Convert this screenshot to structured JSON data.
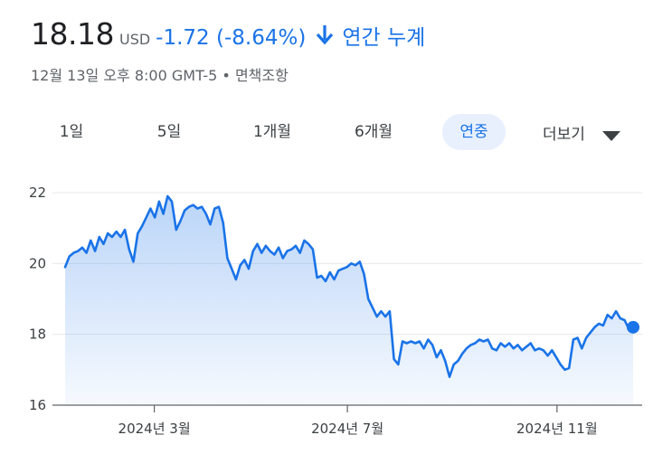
{
  "header": {
    "price": "18.18",
    "currency": "USD",
    "change": "-1.72 (-8.64%)",
    "period_label": "연간 누계",
    "meta": "12월 13일 오후 8:00 GMT-5 • 면책조항",
    "accent_color": "#1a73e8"
  },
  "tabs": [
    {
      "label": "1일",
      "active": false
    },
    {
      "label": "5일",
      "active": false
    },
    {
      "label": "1개월",
      "active": false
    },
    {
      "label": "6개월",
      "active": false
    },
    {
      "label": "연중",
      "active": true
    }
  ],
  "more": {
    "label": "더보기",
    "icon": "caret-down-icon"
  },
  "chart_data": {
    "type": "area",
    "title": "",
    "xlabel": "",
    "ylabel": "",
    "ylim": [
      16,
      22
    ],
    "y_ticks": [
      "22",
      "20",
      "18",
      "16"
    ],
    "x_ticks": [
      "2024년 3월",
      "2024년 7월",
      "2024년 11월"
    ],
    "grid": true,
    "line_color": "#1a73e8",
    "series": [
      {
        "values": [
          19.9,
          20.2,
          20.3,
          20.35,
          20.45,
          20.3,
          20.65,
          20.35,
          20.75,
          20.55,
          20.85,
          20.75,
          20.9,
          20.75,
          20.95,
          20.4,
          20.05,
          20.85,
          21.05,
          21.3,
          21.55,
          21.3,
          21.75,
          21.4,
          21.9,
          21.75,
          20.95,
          21.2,
          21.5,
          21.6,
          21.65,
          21.55,
          21.6,
          21.4,
          21.1,
          21.55,
          21.6,
          21.15,
          20.15,
          19.85,
          19.55,
          19.95,
          20.1,
          19.85,
          20.35,
          20.55,
          20.3,
          20.5,
          20.35,
          20.25,
          20.45,
          20.15,
          20.35,
          20.4,
          20.5,
          20.3,
          20.65,
          20.55,
          20.4,
          19.6,
          19.65,
          19.5,
          19.75,
          19.55,
          19.8,
          19.85,
          19.9,
          20.0,
          19.95,
          20.05,
          19.7,
          19.0,
          18.75,
          18.5,
          18.65,
          18.5,
          18.65,
          17.3,
          17.15,
          17.8,
          17.75,
          17.8,
          17.75,
          17.8,
          17.6,
          17.85,
          17.7,
          17.35,
          17.55,
          17.25,
          16.8,
          17.15,
          17.25,
          17.45,
          17.6,
          17.7,
          17.75,
          17.85,
          17.8,
          17.85,
          17.6,
          17.55,
          17.75,
          17.65,
          17.75,
          17.6,
          17.7,
          17.55,
          17.65,
          17.75,
          17.55,
          17.6,
          17.55,
          17.4,
          17.55,
          17.35,
          17.15,
          17.0,
          17.05,
          17.85,
          17.9,
          17.6,
          17.9,
          18.05,
          18.2,
          18.3,
          18.25,
          18.55,
          18.45,
          18.65,
          18.45,
          18.4,
          18.15,
          18.2
        ]
      }
    ]
  }
}
